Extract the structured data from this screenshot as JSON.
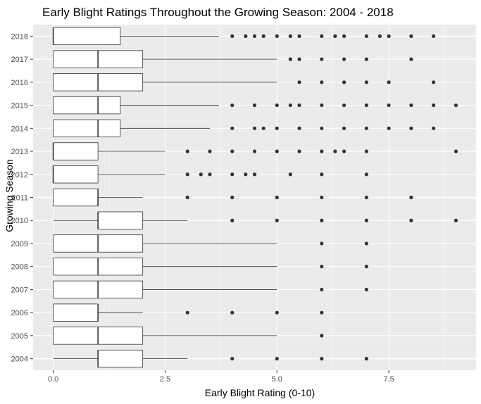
{
  "chart_data": {
    "type": "boxplot",
    "orientation": "horizontal",
    "title": "Early Blight Ratings Throughout the Growing Season: 2004 - 2018",
    "xlabel": "Early Blight Rating (0-10)",
    "ylabel": "Growing Season",
    "xlim": [
      -0.45,
      9.45
    ],
    "x_ticks": [
      0,
      2.5,
      5,
      7.5
    ],
    "x_tick_labels": [
      "0.0",
      "2.5",
      "5.0",
      "7.5"
    ],
    "grid": true,
    "categories": [
      "2004",
      "2005",
      "2006",
      "2007",
      "2008",
      "2009",
      "2010",
      "2011",
      "2012",
      "2013",
      "2014",
      "2015",
      "2016",
      "2017",
      "2018"
    ],
    "boxes": [
      {
        "year": "2004",
        "whisker_low": 0,
        "q1": 1,
        "median": 1,
        "q3": 2,
        "whisker_high": 3,
        "outliers": [
          4,
          5,
          6,
          7
        ]
      },
      {
        "year": "2005",
        "whisker_low": 0,
        "q1": 0,
        "median": 1,
        "q3": 2,
        "whisker_high": 5,
        "outliers": [
          6
        ]
      },
      {
        "year": "2006",
        "whisker_low": 0,
        "q1": 0,
        "median": 1,
        "q3": 1,
        "whisker_high": 2,
        "outliers": [
          3,
          4,
          5,
          6
        ]
      },
      {
        "year": "2007",
        "whisker_low": 0,
        "q1": 0,
        "median": 1,
        "q3": 2,
        "whisker_high": 5,
        "outliers": [
          6,
          7
        ]
      },
      {
        "year": "2008",
        "whisker_low": 0,
        "q1": 0,
        "median": 1,
        "q3": 2,
        "whisker_high": 5,
        "outliers": [
          6,
          7
        ]
      },
      {
        "year": "2009",
        "whisker_low": 0,
        "q1": 0,
        "median": 1,
        "q3": 2,
        "whisker_high": 5,
        "outliers": [
          6,
          7
        ]
      },
      {
        "year": "2010",
        "whisker_low": 0,
        "q1": 1,
        "median": 1,
        "q3": 2,
        "whisker_high": 3,
        "outliers": [
          4,
          5,
          6,
          7,
          8,
          9
        ]
      },
      {
        "year": "2011",
        "whisker_low": 0,
        "q1": 0,
        "median": 1,
        "q3": 1,
        "whisker_high": 2,
        "outliers": [
          3,
          4,
          5,
          6,
          7,
          8
        ]
      },
      {
        "year": "2012",
        "whisker_low": 0,
        "q1": 0,
        "median": 0,
        "q3": 1,
        "whisker_high": 2.5,
        "outliers": [
          3,
          3.3,
          3.5,
          4,
          4.3,
          4.5,
          5.3,
          6,
          7
        ]
      },
      {
        "year": "2013",
        "whisker_low": 0,
        "q1": 0,
        "median": 0,
        "q3": 1,
        "whisker_high": 2.5,
        "outliers": [
          3,
          3.5,
          4,
          4.5,
          5,
          5.5,
          6,
          6.3,
          6.5,
          7,
          9
        ]
      },
      {
        "year": "2014",
        "whisker_low": 0,
        "q1": 0,
        "median": 1,
        "q3": 1.5,
        "whisker_high": 3.5,
        "outliers": [
          4,
          4.5,
          4.7,
          5,
          5.5,
          6,
          6.5,
          7,
          7.5,
          8,
          8.5
        ]
      },
      {
        "year": "2015",
        "whisker_low": 0,
        "q1": 0,
        "median": 1,
        "q3": 1.5,
        "whisker_high": 3.7,
        "outliers": [
          4,
          4.5,
          5,
          5.3,
          5.5,
          6,
          6.5,
          7,
          7.5,
          8,
          8.5,
          9
        ]
      },
      {
        "year": "2016",
        "whisker_low": 0,
        "q1": 0,
        "median": 1,
        "q3": 2,
        "whisker_high": 5,
        "outliers": [
          5.5,
          6,
          6.5,
          7,
          7.5,
          8.5
        ]
      },
      {
        "year": "2017",
        "whisker_low": 0,
        "q1": 0,
        "median": 1,
        "q3": 2,
        "whisker_high": 5,
        "outliers": [
          5.3,
          5.5,
          6,
          6.5,
          7,
          8
        ]
      },
      {
        "year": "2018",
        "whisker_low": 0,
        "q1": 0,
        "median": 0,
        "q3": 1.5,
        "whisker_high": 3.7,
        "outliers": [
          4,
          4.3,
          4.5,
          4.7,
          5,
          5.3,
          5.5,
          6,
          6.3,
          6.5,
          7,
          7.3,
          7.5,
          8,
          8.5
        ]
      }
    ],
    "colors": {
      "panel_background": "#ebebeb",
      "grid_major": "#ffffff",
      "box_fill": "#ffffff",
      "box_stroke": "#333333",
      "outlier": "#333333",
      "tick_text": "#4d4d4d"
    }
  }
}
